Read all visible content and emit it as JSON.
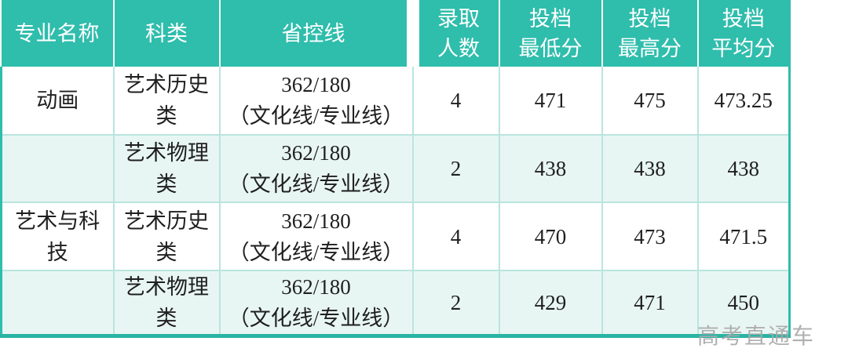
{
  "table": {
    "columns": [
      {
        "key": "major",
        "label": "专业名称"
      },
      {
        "key": "category",
        "label": "科类"
      },
      {
        "key": "control_line",
        "label": "省控线"
      },
      {
        "key": "admit_count",
        "label": "录取\n人数"
      },
      {
        "key": "min_score",
        "label": "投档\n最低分"
      },
      {
        "key": "max_score",
        "label": "投档\n最高分"
      },
      {
        "key": "avg_score",
        "label": "投档\n平均分"
      }
    ],
    "rows": [
      {
        "major": "动画",
        "category": "艺术历史\n类",
        "control_line": "362/180\n（文化线/专业线）",
        "admit_count": "4",
        "min_score": "471",
        "max_score": "475",
        "avg_score": "473.25"
      },
      {
        "major": "",
        "category": "艺术物理\n类",
        "control_line": "362/180\n（文化线/专业线）",
        "admit_count": "2",
        "min_score": "438",
        "max_score": "438",
        "avg_score": "438"
      },
      {
        "major": "艺术与科\n技",
        "category": "艺术历史\n类",
        "control_line": "362/180\n（文化线/专业线）",
        "admit_count": "4",
        "min_score": "470",
        "max_score": "473",
        "avg_score": "471.5"
      },
      {
        "major": "",
        "category": "艺术物理\n类",
        "control_line": "362/180\n（文化线/专业线）",
        "admit_count": "2",
        "min_score": "429",
        "max_score": "471",
        "avg_score": "450"
      }
    ]
  },
  "watermark": "高考直通车",
  "colors": {
    "header_background": "#2fbdac",
    "row_tint": "#e8f6f3",
    "grid_line": "#b9e5de",
    "bottom_border": "#29b4a3",
    "header_text": "#ffffff",
    "body_text": "#1f1f1f",
    "watermark_text": "#a8a8a8"
  }
}
